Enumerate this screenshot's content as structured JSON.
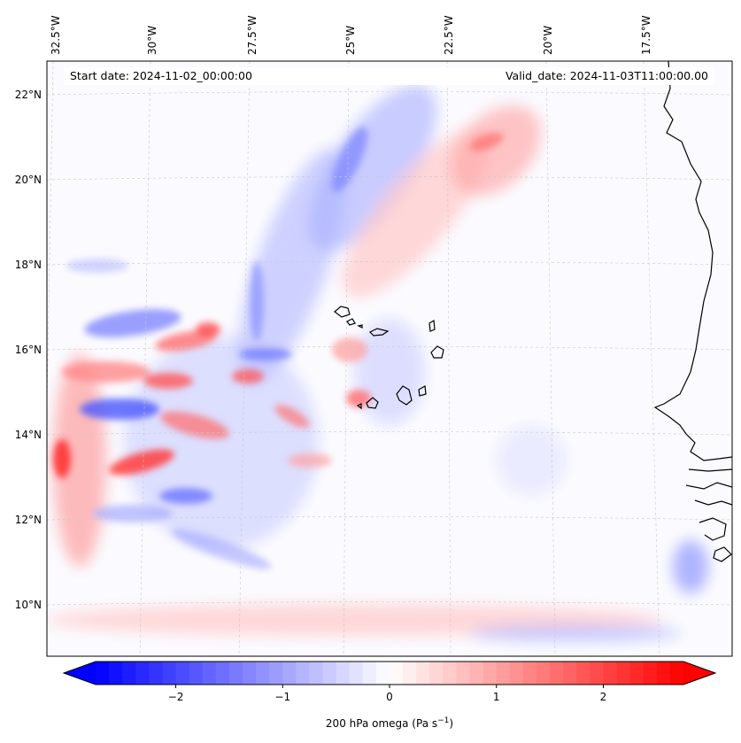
{
  "header": {
    "start_date": "Start date: 2024-11-02_00:00:00",
    "valid_date": "Valid_date: 2024-11-03T11:00:00.00"
  },
  "lon_labels": [
    "32.5°W",
    "30°W",
    "27.5°W",
    "25°W",
    "22.5°W",
    "20°W",
    "17.5°W"
  ],
  "lat_labels": [
    "22°N",
    "20°N",
    "18°N",
    "16°N",
    "14°N",
    "12°N",
    "10°N"
  ],
  "colorbar": {
    "ticks": [
      "−2",
      "−1",
      "0",
      "1",
      "2"
    ],
    "tick_values": [
      -2,
      -1,
      0,
      1,
      2
    ],
    "range": [
      -2.75,
      2.75
    ],
    "label": "200 hPa omega (Pa s",
    "label_sup": "−1",
    "label_close": ")",
    "colors": {
      "negative": "#0000ff",
      "zero": "#ffffff",
      "positive": "#ff0000"
    }
  },
  "map": {
    "region": "Cabo Verde and West African coast",
    "coastline_color": "#000000",
    "gridline_color": "#c8c8c8"
  }
}
